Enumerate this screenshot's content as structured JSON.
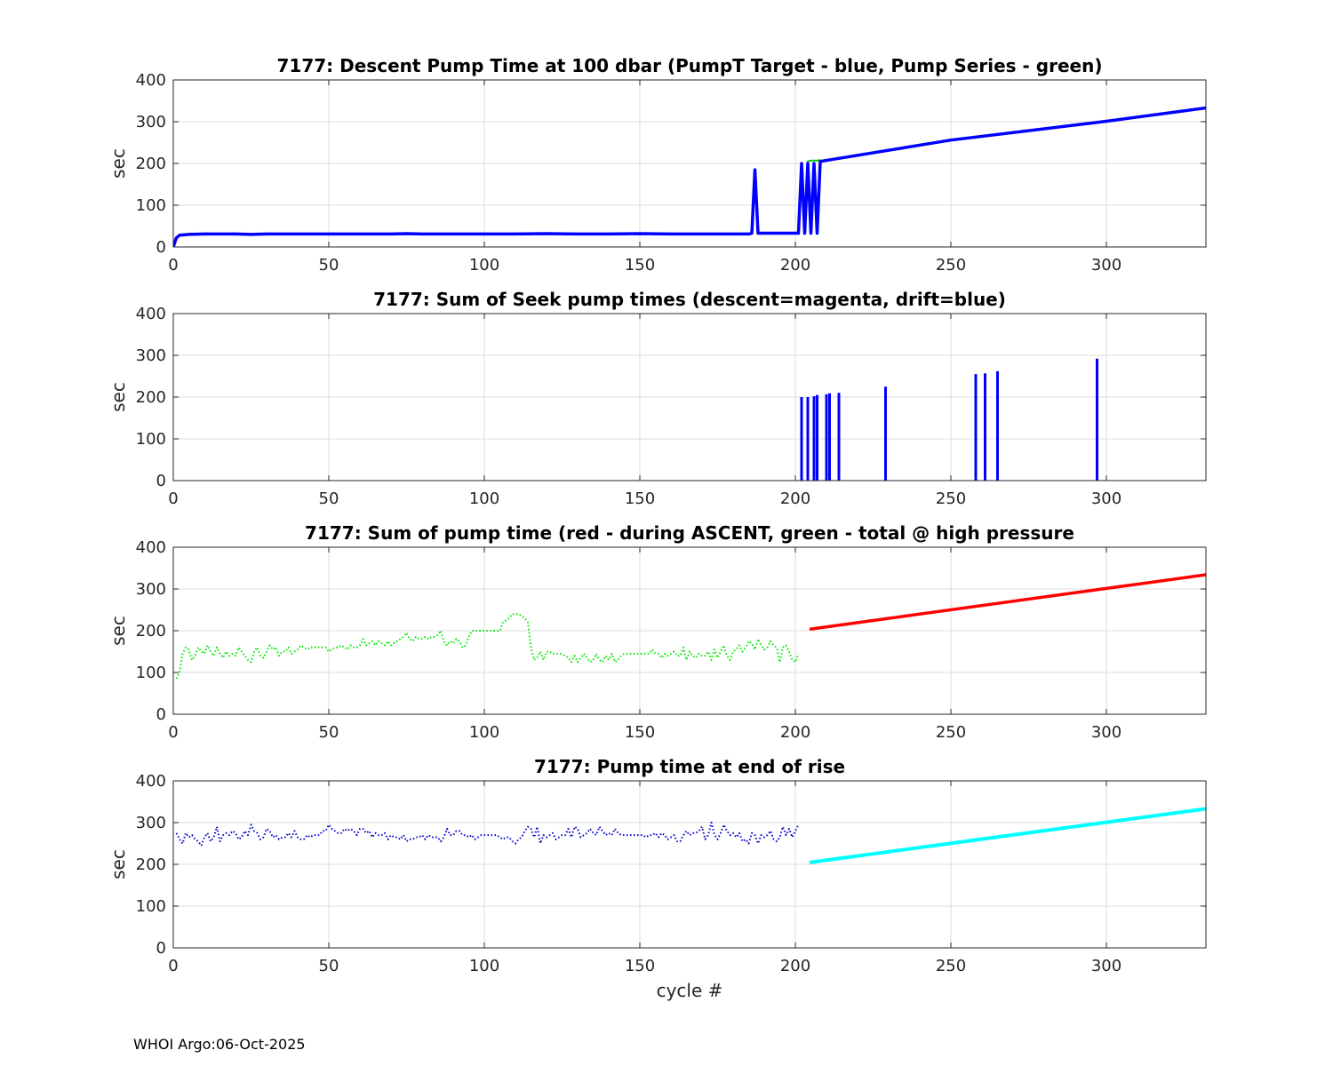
{
  "footer": {
    "text": "WHOI Argo:06-Oct-2025"
  },
  "colors": {
    "blue": "#0000ff",
    "green": "#00cc00",
    "dotted_green": "#00e600",
    "red": "#ff0000",
    "cyan": "#00ffff",
    "dotted_blue": "#0000cc",
    "grid": "#dcdcdc",
    "axis": "#262626"
  },
  "chart_data": [
    {
      "type": "line",
      "title": "7177: Descent Pump Time at 100 dbar (PumpT Target - blue, Pump Series - green)",
      "xlabel": "",
      "ylabel": "sec",
      "xlim": [
        0,
        332
      ],
      "ylim": [
        0,
        400
      ],
      "xticks": [
        0,
        50,
        100,
        150,
        200,
        250,
        300
      ],
      "yticks": [
        0,
        100,
        200,
        300,
        400
      ],
      "grid": true,
      "series": [
        {
          "color": "#00cc00",
          "style": "solid",
          "width": 2,
          "x": [
            200,
            201,
            202,
            203,
            204,
            205,
            206,
            207,
            208
          ],
          "y": [
            33,
            33,
            200,
            33,
            205,
            207,
            207,
            207,
            208
          ]
        },
        {
          "color": "#0000ff",
          "style": "solid",
          "width": 3.5,
          "x": [
            0,
            1,
            2,
            5,
            10,
            20,
            25,
            30,
            40,
            50,
            60,
            70,
            75,
            80,
            90,
            100,
            110,
            120,
            130,
            140,
            150,
            160,
            170,
            180,
            185,
            186,
            187,
            188,
            189,
            195,
            200,
            201,
            202,
            203,
            204,
            205,
            206,
            207,
            208,
            250,
            300,
            332
          ],
          "y": [
            0,
            22,
            28,
            30,
            31,
            31,
            30,
            31,
            31,
            31,
            31,
            31,
            32,
            31,
            31,
            31,
            31,
            32,
            31,
            31,
            32,
            31,
            31,
            31,
            31,
            33,
            185,
            33,
            33,
            33,
            33,
            33,
            200,
            33,
            200,
            33,
            200,
            33,
            205,
            256,
            301,
            333
          ]
        }
      ]
    },
    {
      "type": "bar",
      "title": "7177: Sum of Seek pump times (descent=magenta, drift=blue)",
      "xlabel": "",
      "ylabel": "sec",
      "xlim": [
        0,
        332
      ],
      "ylim": [
        0,
        400
      ],
      "xticks": [
        0,
        50,
        100,
        150,
        200,
        250,
        300
      ],
      "yticks": [
        0,
        100,
        200,
        300,
        400
      ],
      "grid": true,
      "series": [
        {
          "color": "#0000ff",
          "x": [
            202,
            204,
            206,
            207,
            210,
            211,
            214,
            229,
            258,
            261,
            265,
            297
          ],
          "values": [
            200,
            200,
            202,
            205,
            207,
            209,
            210,
            225,
            255,
            257,
            262,
            292
          ]
        }
      ]
    },
    {
      "type": "line",
      "title": "7177: Sum of pump time (red - during ASCENT, green - total @ high pressure",
      "xlabel": "",
      "ylabel": "sec",
      "xlim": [
        0,
        332
      ],
      "ylim": [
        0,
        400
      ],
      "xticks": [
        0,
        50,
        100,
        150,
        200,
        250,
        300
      ],
      "yticks": [
        0,
        100,
        200,
        300,
        400
      ],
      "grid": true,
      "series": [
        {
          "color": "#00e600",
          "style": "dotted",
          "width": 2,
          "x": [
            1,
            2,
            3,
            4,
            5,
            6,
            7,
            8,
            9,
            10,
            11,
            12,
            13,
            14,
            15,
            16,
            17,
            18,
            19,
            20,
            21,
            22,
            23,
            24,
            25,
            26,
            27,
            28,
            29,
            30,
            31,
            32,
            33,
            34,
            35,
            36,
            37,
            38,
            39,
            40,
            41,
            42,
            43,
            44,
            45,
            46,
            47,
            48,
            49,
            50,
            51,
            52,
            53,
            54,
            55,
            56,
            57,
            58,
            59,
            60,
            61,
            62,
            63,
            64,
            65,
            66,
            67,
            68,
            69,
            70,
            71,
            72,
            73,
            74,
            75,
            76,
            77,
            78,
            79,
            80,
            81,
            82,
            83,
            84,
            85,
            86,
            87,
            88,
            89,
            90,
            91,
            92,
            93,
            94,
            95,
            96,
            97,
            98,
            99,
            100,
            101,
            102,
            103,
            104,
            105,
            106,
            107,
            108,
            109,
            110,
            111,
            112,
            113,
            114,
            115,
            116,
            117,
            118,
            119,
            120,
            121,
            122,
            123,
            124,
            125,
            126,
            127,
            128,
            129,
            130,
            131,
            132,
            133,
            134,
            135,
            136,
            137,
            138,
            139,
            140,
            141,
            142,
            143,
            144,
            145,
            146,
            147,
            148,
            149,
            150,
            151,
            152,
            153,
            154,
            155,
            156,
            157,
            158,
            159,
            160,
            161,
            162,
            163,
            164,
            165,
            166,
            167,
            168,
            169,
            170,
            171,
            172,
            173,
            174,
            175,
            176,
            177,
            178,
            179,
            180,
            181,
            182,
            183,
            184,
            185,
            186,
            187,
            188,
            189,
            190,
            191,
            192,
            193,
            194,
            195,
            196,
            197,
            198,
            199,
            200,
            201
          ],
          "y": [
            85,
            100,
            145,
            160,
            155,
            130,
            140,
            160,
            150,
            145,
            165,
            150,
            140,
            160,
            145,
            135,
            150,
            140,
            145,
            140,
            160,
            150,
            140,
            130,
            125,
            150,
            160,
            140,
            135,
            150,
            165,
            155,
            160,
            140,
            150,
            150,
            160,
            145,
            150,
            155,
            165,
            160,
            155,
            160,
            160,
            160,
            160,
            160,
            160,
            150,
            155,
            160,
            160,
            165,
            160,
            155,
            165,
            160,
            160,
            165,
            180,
            165,
            170,
            175,
            165,
            175,
            170,
            165,
            175,
            165,
            170,
            175,
            180,
            185,
            195,
            180,
            175,
            185,
            180,
            180,
            185,
            180,
            185,
            185,
            190,
            200,
            175,
            165,
            175,
            170,
            180,
            175,
            160,
            165,
            185,
            200,
            200,
            200,
            200,
            200,
            200,
            200,
            200,
            200,
            200,
            220,
            225,
            230,
            240,
            240,
            240,
            235,
            230,
            220,
            160,
            130,
            135,
            150,
            130,
            150,
            150,
            145,
            145,
            145,
            145,
            140,
            135,
            125,
            140,
            125,
            135,
            145,
            135,
            125,
            130,
            145,
            130,
            125,
            140,
            130,
            145,
            125,
            130,
            140,
            145,
            145,
            145,
            145,
            145,
            145,
            145,
            145,
            145,
            155,
            145,
            145,
            135,
            145,
            140,
            145,
            150,
            140,
            140,
            160,
            130,
            150,
            140,
            135,
            145,
            140,
            140,
            150,
            130,
            155,
            135,
            150,
            165,
            140,
            130,
            150,
            155,
            165,
            150,
            160,
            175,
            170,
            155,
            180,
            165,
            155,
            160,
            175,
            165,
            160,
            125,
            160,
            165,
            150,
            130,
            125,
            145
          ]
        },
        {
          "color": "#ff0000",
          "style": "solid",
          "width": 3.5,
          "x": [
            205,
            332
          ],
          "y": [
            204,
            334
          ]
        }
      ]
    },
    {
      "type": "line",
      "title": "7177: Pump time at end of rise",
      "xlabel": "cycle #",
      "ylabel": "sec",
      "xlim": [
        0,
        332
      ],
      "ylim": [
        0,
        400
      ],
      "xticks": [
        0,
        50,
        100,
        150,
        200,
        250,
        300
      ],
      "yticks": [
        0,
        100,
        200,
        300,
        400
      ],
      "grid": true,
      "series": [
        {
          "color": "#0000cc",
          "style": "dotted",
          "width": 2,
          "x": [
            1,
            2,
            3,
            4,
            5,
            6,
            7,
            8,
            9,
            10,
            11,
            12,
            13,
            14,
            15,
            16,
            17,
            18,
            19,
            20,
            21,
            22,
            23,
            24,
            25,
            26,
            27,
            28,
            29,
            30,
            31,
            32,
            33,
            34,
            35,
            36,
            37,
            38,
            39,
            40,
            41,
            42,
            43,
            44,
            45,
            46,
            47,
            48,
            49,
            50,
            51,
            52,
            53,
            54,
            55,
            56,
            57,
            58,
            59,
            60,
            61,
            62,
            63,
            64,
            65,
            66,
            67,
            68,
            69,
            70,
            71,
            72,
            73,
            74,
            75,
            76,
            77,
            78,
            79,
            80,
            81,
            82,
            83,
            84,
            85,
            86,
            87,
            88,
            89,
            90,
            91,
            92,
            93,
            94,
            95,
            96,
            97,
            98,
            99,
            100,
            101,
            102,
            103,
            104,
            105,
            106,
            107,
            108,
            109,
            110,
            111,
            112,
            113,
            114,
            115,
            116,
            117,
            118,
            119,
            120,
            121,
            122,
            123,
            124,
            125,
            126,
            127,
            128,
            129,
            130,
            131,
            132,
            133,
            134,
            135,
            136,
            137,
            138,
            139,
            140,
            141,
            142,
            143,
            144,
            145,
            146,
            147,
            148,
            149,
            150,
            151,
            152,
            153,
            154,
            155,
            156,
            157,
            158,
            159,
            160,
            161,
            162,
            163,
            164,
            165,
            166,
            167,
            168,
            169,
            170,
            171,
            172,
            173,
            174,
            175,
            176,
            177,
            178,
            179,
            180,
            181,
            182,
            183,
            184,
            185,
            186,
            187,
            188,
            189,
            190,
            191,
            192,
            193,
            194,
            195,
            196,
            197,
            198,
            199,
            200,
            201
          ],
          "y": [
            275,
            260,
            250,
            275,
            265,
            270,
            260,
            255,
            245,
            265,
            275,
            255,
            265,
            290,
            255,
            270,
            275,
            270,
            280,
            275,
            260,
            265,
            280,
            270,
            295,
            280,
            275,
            260,
            265,
            285,
            280,
            265,
            270,
            260,
            265,
            265,
            275,
            265,
            280,
            265,
            260,
            260,
            270,
            265,
            270,
            270,
            270,
            280,
            280,
            295,
            285,
            280,
            275,
            275,
            285,
            280,
            285,
            280,
            270,
            285,
            285,
            275,
            280,
            265,
            275,
            270,
            270,
            275,
            260,
            270,
            265,
            265,
            260,
            270,
            255,
            260,
            260,
            265,
            265,
            270,
            260,
            270,
            265,
            265,
            265,
            255,
            265,
            285,
            270,
            270,
            280,
            280,
            270,
            270,
            265,
            270,
            260,
            265,
            270,
            270,
            270,
            270,
            270,
            270,
            265,
            260,
            265,
            265,
            255,
            250,
            260,
            265,
            280,
            290,
            285,
            265,
            290,
            250,
            270,
            265,
            270,
            275,
            260,
            265,
            270,
            270,
            285,
            265,
            290,
            285,
            265,
            270,
            275,
            285,
            275,
            270,
            290,
            280,
            270,
            275,
            270,
            285,
            275,
            270,
            270,
            270,
            270,
            270,
            270,
            270,
            270,
            265,
            270,
            270,
            275,
            265,
            275,
            270,
            260,
            265,
            270,
            255,
            255,
            270,
            280,
            270,
            275,
            275,
            280,
            290,
            260,
            270,
            300,
            270,
            260,
            275,
            295,
            280,
            270,
            275,
            265,
            275,
            255,
            260,
            250,
            275,
            270,
            250,
            270,
            265,
            270,
            280,
            260,
            255,
            265,
            290,
            270,
            285,
            265,
            280,
            295
          ]
        },
        {
          "color": "#00ffff",
          "style": "solid",
          "width": 4,
          "x": [
            205,
            332
          ],
          "y": [
            205,
            333
          ]
        }
      ]
    }
  ]
}
